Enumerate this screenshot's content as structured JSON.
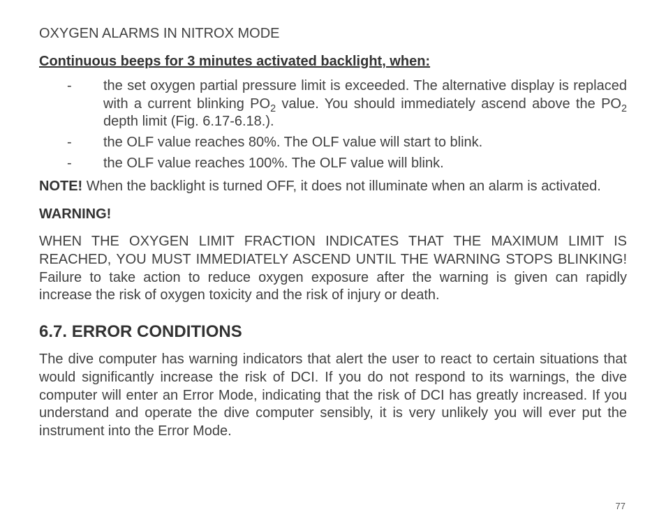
{
  "section_title": "OXYGEN ALARMS IN NITROX MODE",
  "subheading": "Continuous beeps for 3 minutes activated backlight, when:",
  "bullets": {
    "b1a": "the set oxygen partial pressure limit is exceeded. The alternative display is replaced with a current blinking PO",
    "b1b": " value. You should immediately ascend above the PO",
    "b1c": " depth limit (Fig. 6.17-6.18.).",
    "sub2": "2",
    "b2": "the OLF value reaches 80%. The OLF value will start to blink.",
    "b3": "the OLF value reaches 100%. The OLF value will blink."
  },
  "note_label": "NOTE!",
  "note_text": " When the backlight is turned OFF, it does not illuminate when an alarm is activated.",
  "warning_label": "WARNING!",
  "warning_text": "WHEN THE OXYGEN LIMIT FRACTION INDICATES THAT THE MAXIMUM LIMIT IS REACHED, YOU MUST IMMEDIATELY ASCEND UNTIL THE WARNING STOPS BLINKING! Failure to take action to reduce oxygen exposure after the warning is given can rapidly increase the risk of oxygen toxicity and the risk of injury or death.",
  "heading": "6.7. ERROR CONDITIONS",
  "body": "The dive computer has warning indicators that alert the user to react to certain situations that would significantly increase the risk of DCI. If you do not respond to its warnings, the dive computer will enter an Error Mode, indicating that the risk of DCI has greatly increased. If you understand and operate the dive computer sensibly, it is very unlikely you will ever put the instrument into the Error Mode.",
  "page_number": "77"
}
